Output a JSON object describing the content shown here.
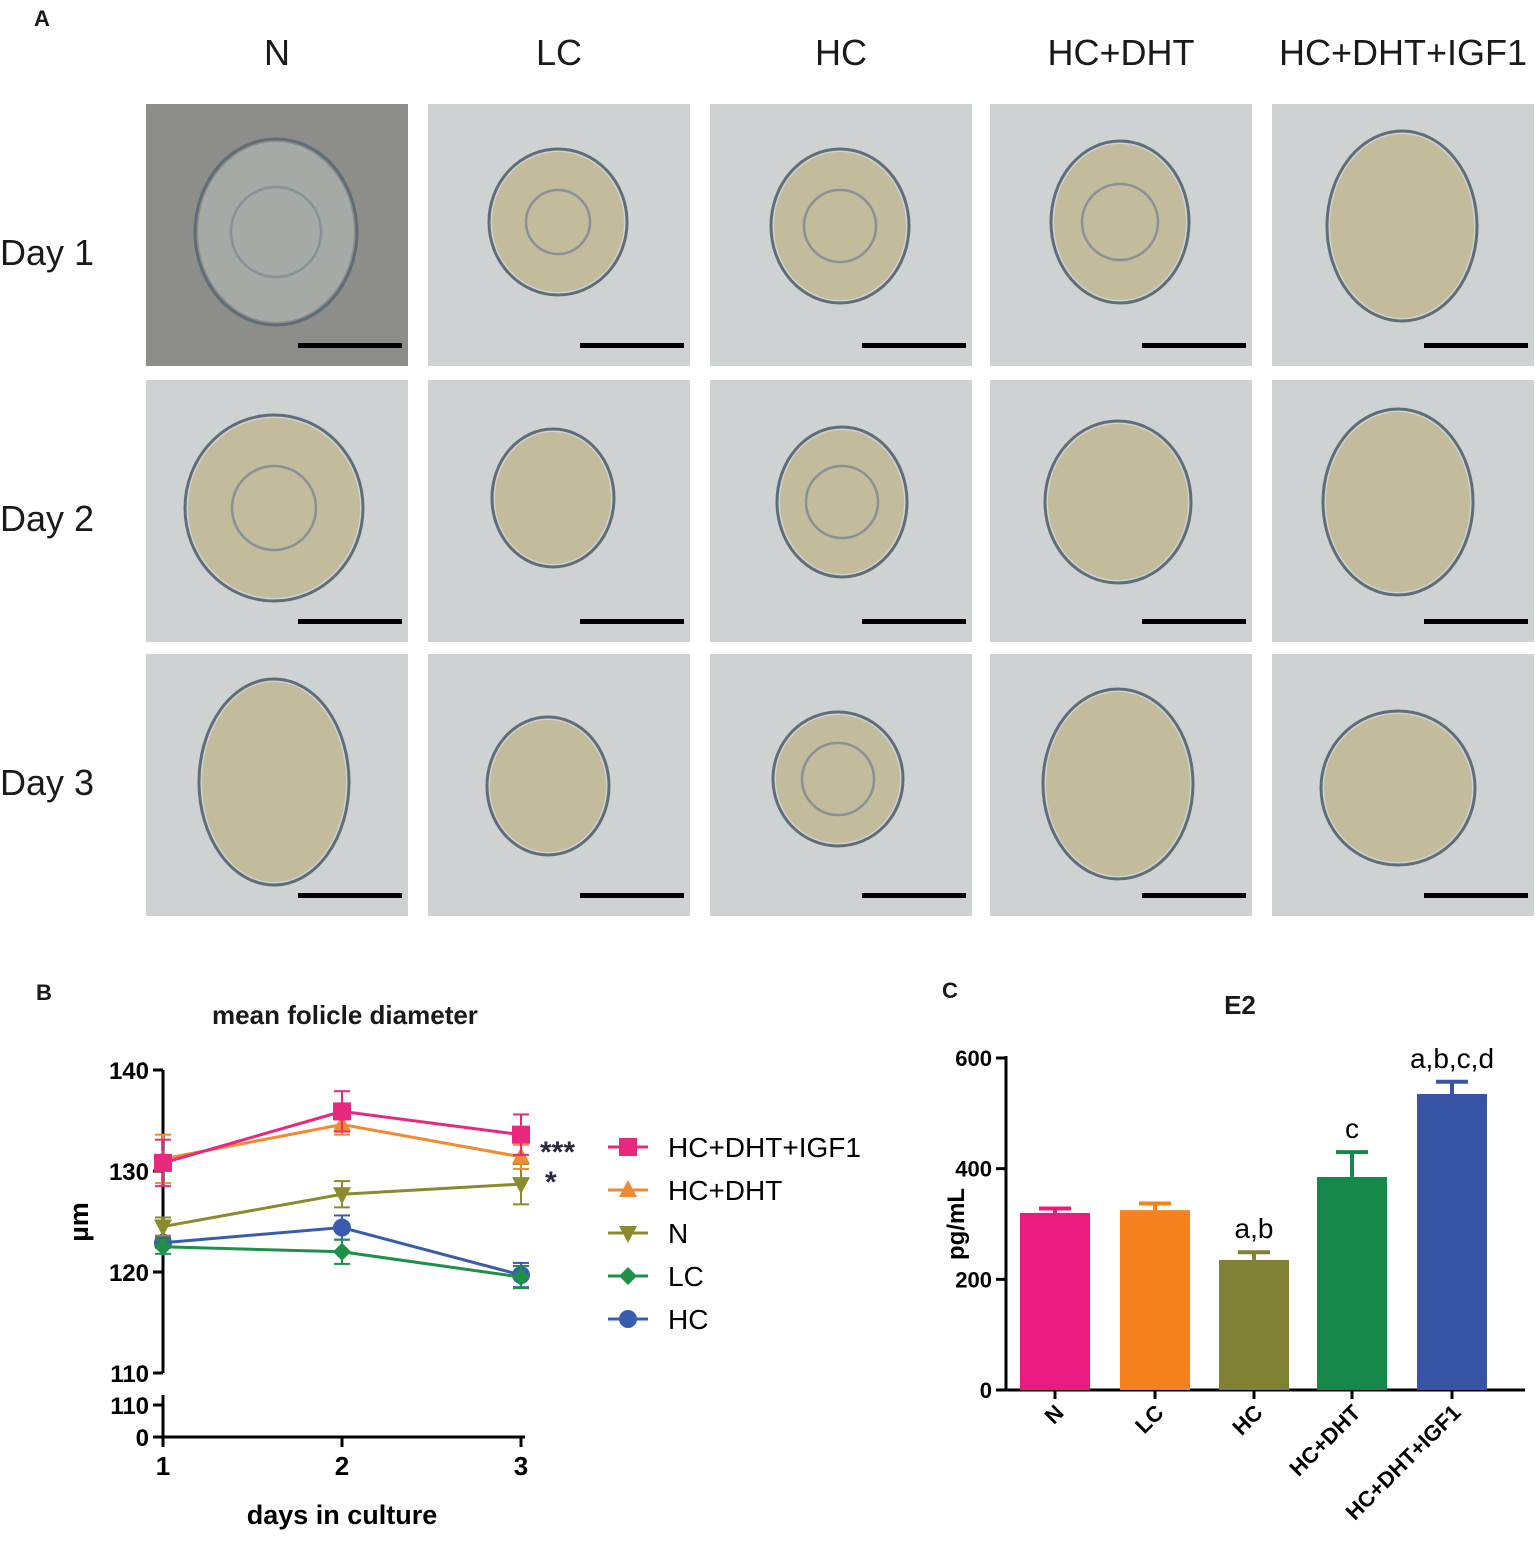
{
  "panelA": {
    "letter": "A",
    "columns": [
      "N",
      "LC",
      "HC",
      "HC+DHT",
      "HC+DHT+IGF1"
    ],
    "rows": [
      "Day 1",
      "Day 2",
      "Day 3"
    ]
  },
  "panelB": {
    "letter": "B",
    "significance": {
      "top": "***",
      "second": "*"
    }
  },
  "panelC": {
    "letter": "C"
  },
  "chart_data": [
    {
      "type": "line",
      "title": "mean folicle diameter",
      "xlabel": "days in culture",
      "ylabel": "µm",
      "x": [
        1,
        2,
        3
      ],
      "ylim": [
        110,
        140
      ],
      "broken_axis": {
        "lower_ticks": [
          "0",
          "110"
        ],
        "upper_ticks": [
          110,
          120,
          130,
          140
        ]
      },
      "legend_position": "right",
      "series": [
        {
          "name": "HC+DHT+IGF1",
          "values": [
            130.8,
            135.9,
            133.6
          ],
          "errors": [
            2.3,
            2.0,
            2.0
          ],
          "color": "#e8277f",
          "marker": "square"
        },
        {
          "name": "HC+DHT",
          "values": [
            131.2,
            134.6,
            131.4
          ],
          "errors": [
            2.4,
            1.0,
            1.2
          ],
          "color": "#f28a30",
          "marker": "triangle-up"
        },
        {
          "name": "N",
          "values": [
            124.5,
            127.7,
            128.7
          ],
          "errors": [
            0.9,
            1.3,
            2.0
          ],
          "color": "#8a8a2e",
          "marker": "triangle-down"
        },
        {
          "name": "LC",
          "values": [
            122.5,
            122.0,
            119.5
          ],
          "errors": [
            0.7,
            1.2,
            1.1
          ],
          "color": "#1f8f4a",
          "marker": "diamond"
        },
        {
          "name": "HC",
          "values": [
            122.9,
            124.4,
            119.7
          ],
          "errors": [
            0.5,
            1.2,
            1.2
          ],
          "color": "#3a5cb0",
          "marker": "circle"
        }
      ]
    },
    {
      "type": "bar",
      "title": "E2",
      "ylabel": "pg/mL",
      "xlabel": "",
      "categories": [
        "N",
        "LC",
        "HC",
        "HC+DHT",
        "HC+DHT+IGF1"
      ],
      "values": [
        320,
        325,
        235,
        385,
        535
      ],
      "errors": [
        8,
        12,
        14,
        45,
        22
      ],
      "annotations": [
        "",
        "",
        "a,b",
        "c",
        "a,b,c,d"
      ],
      "colors": [
        "#ea1a7f",
        "#f5821f",
        "#808133",
        "#16884a",
        "#3953a4"
      ],
      "ylim": [
        0,
        600
      ],
      "yticks": [
        0,
        200,
        400,
        600
      ]
    }
  ]
}
